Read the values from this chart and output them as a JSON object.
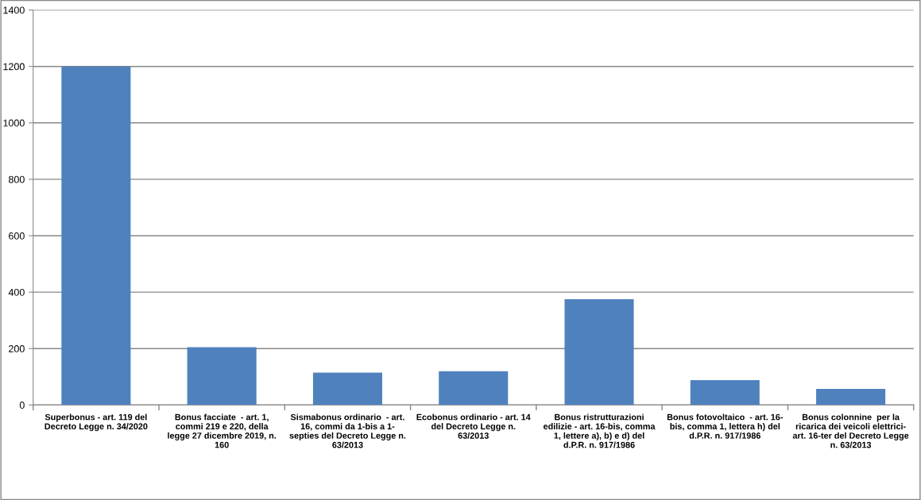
{
  "chart_data": {
    "type": "bar",
    "categories": [
      "Superbonus - art. 119 del\nDecreto Legge n. 34/2020",
      "Bonus facciate  - art. 1,\ncommi 219 e 220, della\nlegge 27 dicembre 2019, n.\n160",
      "Sismabonus ordinario  - art.\n16, commi da 1-bis a 1-\nsepties del Decreto Legge n.\n63/2013",
      "Ecobonus ordinario - art. 14\ndel Decreto Legge n.\n63/2013",
      "Bonus ristrutturazioni\nedilizie - art. 16-bis, comma\n1, lettere a), b) e d) del\nd.P.R. n. 917/1986",
      "Bonus fotovoltaico  - art. 16-\nbis, comma 1, lettera h) del\nd.P.R. n. 917/1986",
      "Bonus colonnine  per la\nricarica dei veicoli elettrici-\nart. 16-ter del Decreto Legge\nn. 63/2013"
    ],
    "values": [
      1200,
      205,
      115,
      120,
      375,
      88,
      57
    ],
    "color": "#4f81bd",
    "ylim": [
      0,
      1400
    ],
    "yticks": [
      0,
      200,
      400,
      600,
      800,
      1000,
      1200,
      1400
    ],
    "grid": "y",
    "legend": false
  }
}
